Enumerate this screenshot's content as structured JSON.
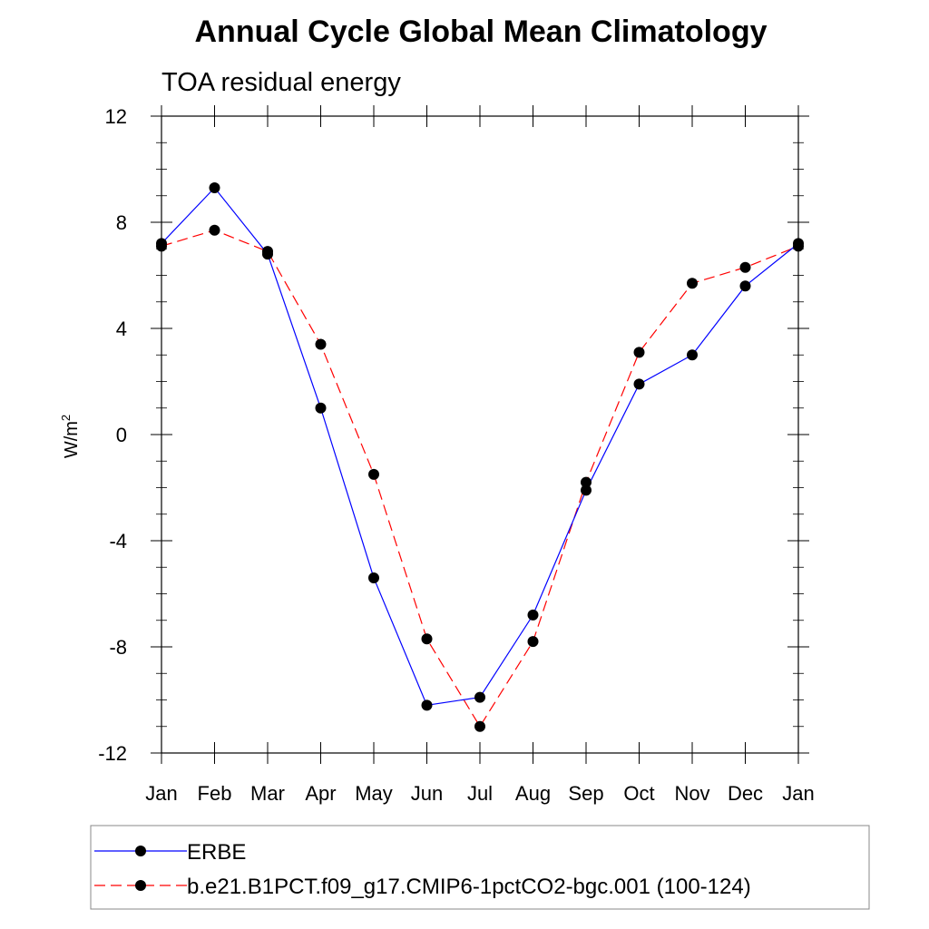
{
  "chart_data": {
    "type": "line",
    "title": "Annual Cycle Global Mean Climatology",
    "subtitle": "TOA residual energy",
    "ylabel": "W/m",
    "ylabel_superscript": "2",
    "xlabel": "",
    "categories": [
      "Jan",
      "Feb",
      "Mar",
      "Apr",
      "May",
      "Jun",
      "Jul",
      "Aug",
      "Sep",
      "Oct",
      "Nov",
      "Dec",
      "Jan"
    ],
    "ylim": [
      -12,
      12
    ],
    "yticks": [
      -12,
      -8,
      -4,
      0,
      4,
      8,
      12
    ],
    "ytick_labels": [
      "-12",
      "-8",
      "-4",
      "0",
      "4",
      "8",
      "12"
    ],
    "legend_position": "bottom",
    "series": [
      {
        "name": "ERBE",
        "color": "#0000ff",
        "style": "solid",
        "values": [
          7.2,
          9.3,
          6.8,
          1.0,
          -5.4,
          -10.2,
          -9.9,
          -6.8,
          -2.1,
          1.9,
          3.0,
          5.6,
          7.2
        ]
      },
      {
        "name": "b.e21.B1PCT.f09_g17.CMIP6-1pctCO2-bgc.001 (100-124)",
        "color": "#ff0000",
        "style": "dashed",
        "values": [
          7.1,
          7.7,
          6.9,
          3.4,
          -1.5,
          -7.7,
          -11.0,
          -7.8,
          -1.8,
          3.1,
          5.7,
          6.3,
          7.1
        ]
      }
    ]
  }
}
